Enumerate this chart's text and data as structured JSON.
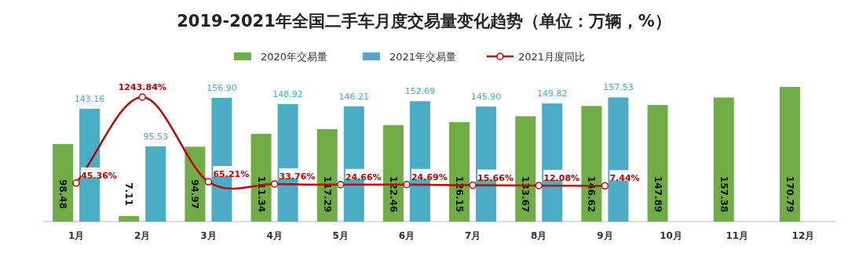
{
  "chart_data": {
    "type": "bar",
    "title": "2019-2021年全国二手车月度交易量变化趋势（单位：万辆，%）",
    "categories": [
      "1月",
      "2月",
      "3月",
      "4月",
      "5月",
      "6月",
      "7月",
      "8月",
      "9月",
      "10月",
      "11月",
      "12月"
    ],
    "series": [
      {
        "name": "2020年交易量",
        "color": "#70ad47",
        "values": [
          98.48,
          7.11,
          94.97,
          111.34,
          117.29,
          122.46,
          126.15,
          133.67,
          146.62,
          147.89,
          157.38,
          170.79
        ],
        "value_labels": [
          "98.48",
          "7.11",
          "94.97",
          "111.34",
          "117.29",
          "122.46",
          "126.15",
          "133.67",
          "146.62",
          "147.89",
          "157.38",
          "170.79"
        ]
      },
      {
        "name": "2021年交易量",
        "color": "#4bacc6",
        "values": [
          143.16,
          95.53,
          156.9,
          148.92,
          146.21,
          152.69,
          145.9,
          149.82,
          157.53,
          null,
          null,
          null
        ],
        "value_labels": [
          "143.16",
          "95.53",
          "156.90",
          "148.92",
          "146.21",
          "152.69",
          "145.90",
          "149.82",
          "157.53",
          null,
          null,
          null
        ]
      },
      {
        "name": "2021月度同比",
        "type": "line",
        "axis": "y2",
        "color": "#c00000",
        "values": [
          45.36,
          1243.84,
          65.21,
          33.76,
          24.66,
          24.69,
          15.66,
          12.08,
          7.44,
          null,
          null,
          null
        ],
        "value_labels": [
          "45.36%",
          "1243.84%",
          "65.21%",
          "33.76%",
          "24.66%",
          "24.69%",
          "15.66%",
          "12.08%",
          "7.44%",
          null,
          null,
          null
        ]
      }
    ],
    "data_labels": true,
    "legend": "top",
    "marker": "circle",
    "line_style": "solid"
  }
}
